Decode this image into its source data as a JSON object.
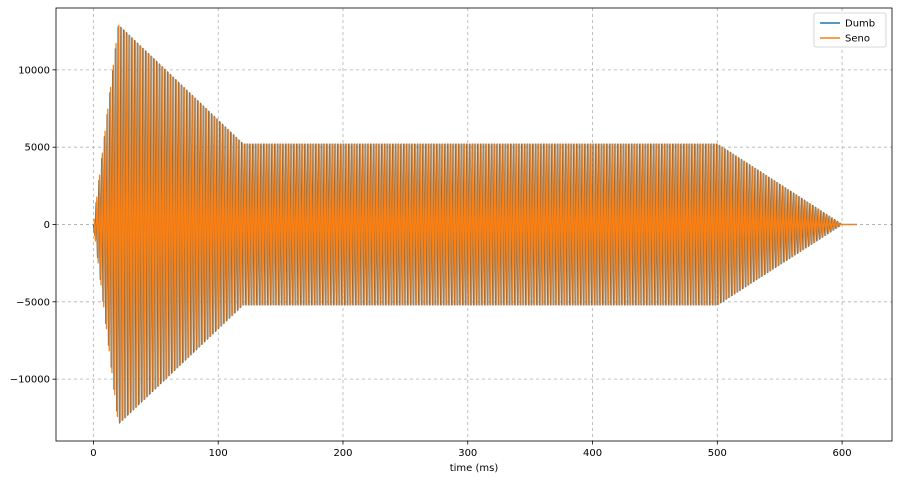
{
  "chart_data": {
    "type": "line",
    "title": "",
    "xlabel": "time (ms)",
    "ylabel": "",
    "xlim": [
      -30,
      640
    ],
    "ylim": [
      -14000,
      14000
    ],
    "x_ticks": [
      0,
      100,
      200,
      300,
      400,
      500,
      600
    ],
    "y_ticks": [
      -10000,
      -5000,
      0,
      5000,
      10000
    ],
    "x_tick_labels": [
      "0",
      "100",
      "200",
      "300",
      "400",
      "500",
      "600"
    ],
    "y_tick_labels": [
      "−10000",
      "−5000",
      "0",
      "5000",
      "10000"
    ],
    "grid": true,
    "legend_position": "top-right",
    "envelope": {
      "description_points_ms": [
        0,
        20,
        120,
        500,
        600,
        612
      ],
      "amplitude": [
        0,
        12900,
        5200,
        5200,
        0,
        0
      ]
    },
    "oscillation_period_ms": 2.2,
    "series": [
      {
        "name": "Dumb",
        "color": "#1f77b4",
        "phase": 0.0
      },
      {
        "name": "Seno",
        "color": "#ff7f0e",
        "phase": 0.5
      }
    ]
  }
}
